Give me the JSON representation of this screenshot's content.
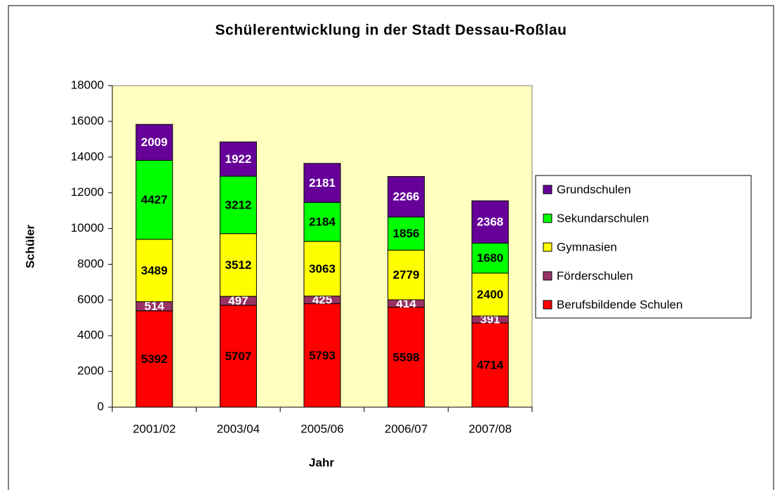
{
  "chart_data": {
    "type": "stacked_bar",
    "title": "Schülerentwicklung in der Stadt Dessau-Roßlau",
    "x_label": "Jahr",
    "y_label": "Schüler",
    "categories": [
      "2001/02",
      "2003/04",
      "2005/06",
      "2006/07",
      "2007/08"
    ],
    "series": [
      {
        "name": "Berufsbildende Schulen",
        "color": "#ff0000",
        "label_color": "#000000",
        "values": [
          5392,
          5707,
          5793,
          5598,
          4714
        ]
      },
      {
        "name": "Förderschulen",
        "color": "#993366",
        "label_color": "#ffffff",
        "values": [
          514,
          497,
          425,
          414,
          391
        ]
      },
      {
        "name": "Gymnasien",
        "color": "#ffff00",
        "label_color": "#000000",
        "values": [
          3489,
          3512,
          3063,
          2779,
          2400
        ]
      },
      {
        "name": "Sekundarschulen",
        "color": "#00ff00",
        "label_color": "#000000",
        "values": [
          4427,
          3212,
          2184,
          1856,
          1680
        ]
      },
      {
        "name": "Grundschulen",
        "color": "#660099",
        "label_color": "#ffffff",
        "values": [
          2009,
          1922,
          2181,
          2266,
          2368
        ]
      }
    ],
    "ylim": [
      0,
      18000
    ],
    "yticks": [
      0,
      2000,
      4000,
      6000,
      8000,
      10000,
      12000,
      14000,
      16000,
      18000
    ],
    "grid": false,
    "plot_background": "#ffffc0",
    "legend": "right"
  }
}
